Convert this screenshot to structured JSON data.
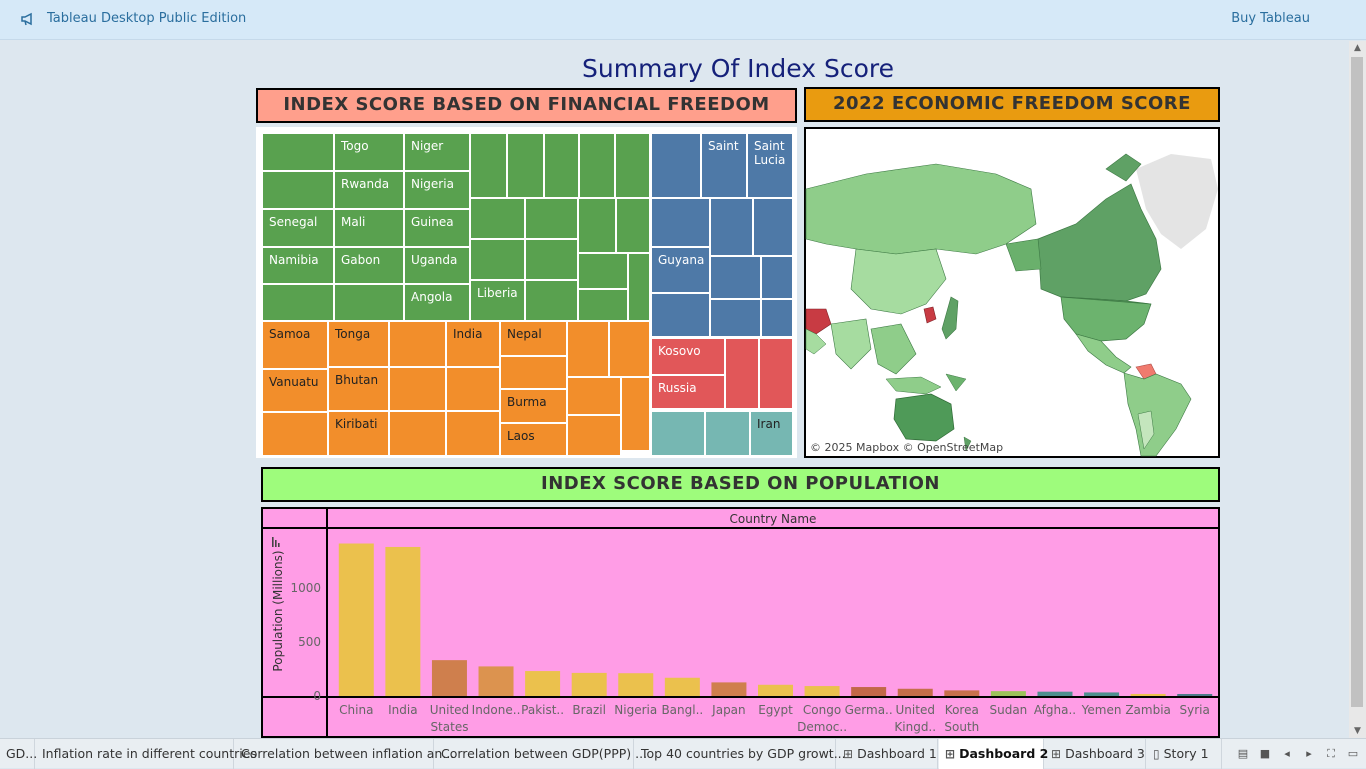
{
  "app": {
    "title": "Tableau Desktop Public Edition",
    "buy_label": "Buy Tableau"
  },
  "dashboard": {
    "title": "Summary Of Index Score",
    "header_financial": "INDEX SCORE BASED ON FINANCIAL FREEDOM",
    "header_economic": "2022 ECONOMIC FREEDOM SCORE",
    "header_population": "INDEX SCORE BASED ON POPULATION",
    "map_credit": "© 2025 Mapbox © OpenStreetMap",
    "colors": {
      "financial_header": "#ff9f8c",
      "economic_header": "#e99b10",
      "population_header": "#9efc7c",
      "panel_bg": "#ff9de6"
    }
  },
  "treemap_labels": {
    "togo": "Togo",
    "niger": "Niger",
    "rwanda": "Rwanda",
    "nigeria": "Nigeria",
    "senegal": "Senegal",
    "mali": "Mali",
    "guinea": "Guinea",
    "namibia": "Namibia",
    "gabon": "Gabon",
    "uganda": "Uganda",
    "angola": "Angola",
    "liberia": "Liberia",
    "saint": "Saint",
    "saint_lucia": "Saint Lucia",
    "guyana": "Guyana",
    "samoa": "Samoa",
    "tonga": "Tonga",
    "india": "India",
    "nepal": "Nepal",
    "vanuatu": "Vanuatu",
    "bhutan": "Bhutan",
    "burma": "Burma",
    "kiribati": "Kiribati",
    "laos": "Laos",
    "kosovo": "Kosovo",
    "russia": "Russia",
    "iran": "Iran"
  },
  "chart_data": {
    "type": "bar",
    "title": "INDEX SCORE BASED ON POPULATION",
    "column_header": "Country Name",
    "ylabel": "Population (Millions)",
    "yticks": [
      0,
      500,
      1000
    ],
    "ylim": [
      0,
      1500
    ],
    "categories": [
      "China",
      "India",
      "United States",
      "Indone..",
      "Pakist..",
      "Brazil",
      "Nigeria",
      "Bangl..",
      "Japan",
      "Egypt",
      "Congo Democ..",
      "Germa..",
      "United Kingd..",
      "Korea South",
      "Sudan",
      "Afgha..",
      "Yemen",
      "Zambia",
      "Syria"
    ],
    "values": [
      1412,
      1380,
      332,
      274,
      231,
      214,
      211,
      169,
      126,
      104,
      92,
      83,
      67,
      52,
      45,
      40,
      33,
      19,
      18
    ],
    "colors": [
      "#ebc14d",
      "#ebc14d",
      "#cf7f4d",
      "#dc934f",
      "#ebc14d",
      "#ebc14d",
      "#ebc14d",
      "#ebc14d",
      "#cf7f4d",
      "#ebc14d",
      "#ebc14d",
      "#c26848",
      "#c56e4a",
      "#c8704c",
      "#9cc25a",
      "#4e8f8f",
      "#4e8f8f",
      "#ebc14d",
      "#4e7a8a"
    ]
  },
  "tabs": [
    {
      "label": "GD...",
      "icon": ""
    },
    {
      "label": "Inflation rate in different countries",
      "icon": ""
    },
    {
      "label": "Correlation between inflation an...",
      "icon": ""
    },
    {
      "label": "Correlation between GDP(PPP) ...",
      "icon": ""
    },
    {
      "label": "Top 40 countries by GDP growt...",
      "icon": ""
    },
    {
      "label": "Dashboard 1",
      "icon": "grid-icon"
    },
    {
      "label": "Dashboard 2",
      "icon": "grid-icon"
    },
    {
      "label": "Dashboard 3",
      "icon": "grid-icon"
    },
    {
      "label": "Story 1",
      "icon": "book-icon"
    }
  ],
  "active_tab": "Dashboard 2"
}
